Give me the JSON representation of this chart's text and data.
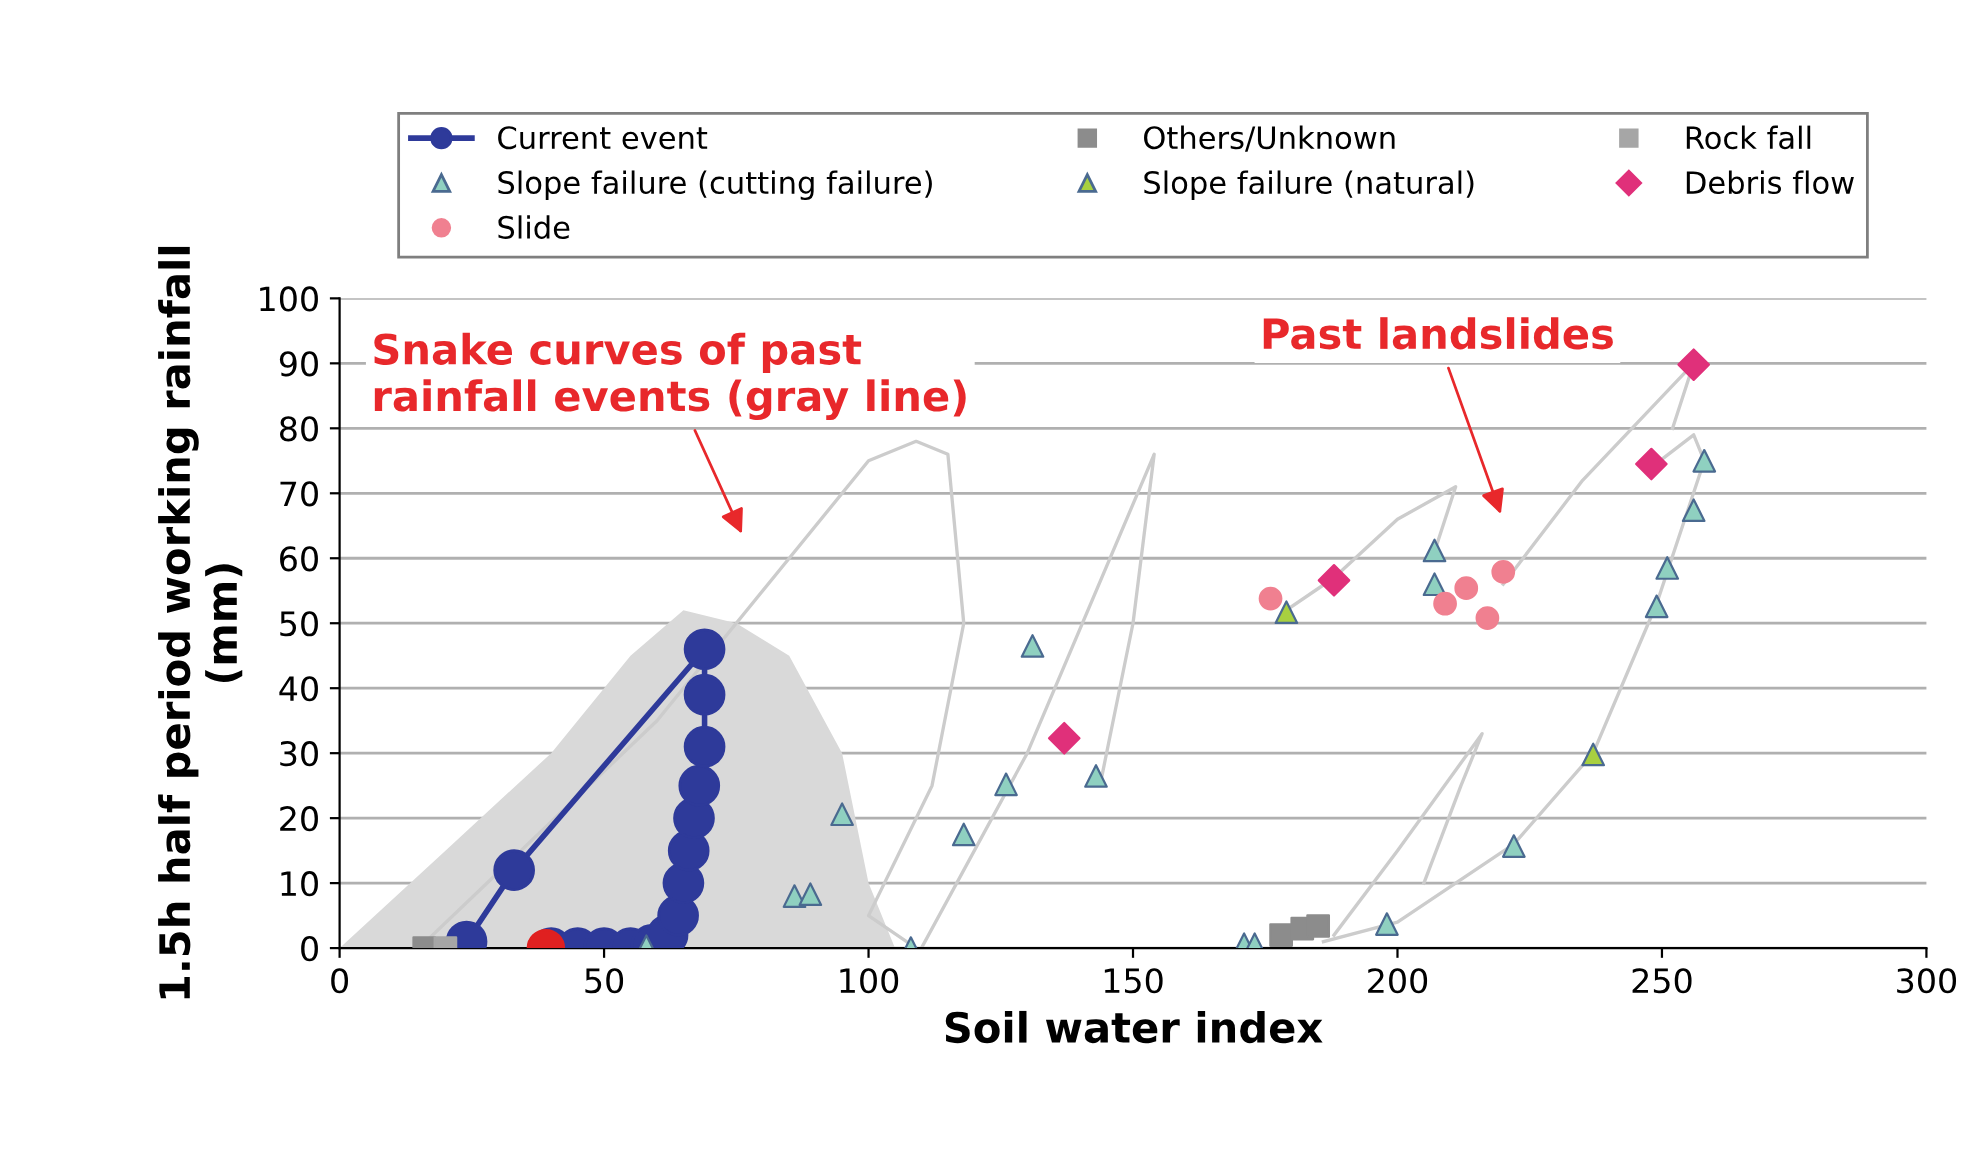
{
  "chart_data": {
    "type": "scatter",
    "xlabel": "Soil water index",
    "ylabel": "1.5h half period working rainfall\n(mm)",
    "xlim": [
      0,
      300
    ],
    "xticks": [
      0,
      50,
      100,
      150,
      200,
      250,
      300
    ],
    "ylim": [
      0,
      100
    ],
    "yticks": [
      0,
      10,
      20,
      30,
      40,
      50,
      60,
      70,
      80,
      90,
      100
    ],
    "grid": "y",
    "legend": "top",
    "series": [
      {
        "type": "line",
        "name": "Current event",
        "color": "#2e3a9a",
        "marker": "circle",
        "x": [
          40,
          45,
          50,
          55,
          59,
          62,
          64,
          65,
          66,
          67,
          68,
          69,
          69,
          69,
          33,
          24
        ],
        "values": [
          0,
          0,
          0,
          0,
          0.5,
          2,
          5,
          10,
          15,
          20,
          25,
          31,
          39,
          46,
          12,
          1
        ]
      },
      {
        "name": "Others/Unknown",
        "color": "#8c8c8c",
        "marker": "square",
        "x": [
          16,
          178,
          182,
          185
        ],
        "values": [
          0,
          2,
          3,
          3.4
        ]
      },
      {
        "name": "Rock fall",
        "color": "#a6a6a6",
        "marker": "square",
        "x": [
          20
        ],
        "values": [
          0
        ]
      },
      {
        "name": "Slope failure (cutting failure)",
        "color": "#8fd0c0",
        "marker": "triangle",
        "x": [
          58,
          86,
          89,
          95,
          108,
          118,
          126,
          131,
          143,
          171,
          173,
          198,
          207,
          207,
          222,
          249,
          251,
          256,
          258
        ],
        "values": [
          0.3,
          8,
          8.3,
          20.6,
          0,
          17.5,
          25.2,
          46.5,
          26.5,
          0.6,
          0.6,
          3.7,
          61.2,
          56,
          15.7,
          52.6,
          58.5,
          67.4,
          75
        ]
      },
      {
        "name": "Slope failure (natural)",
        "color": "#a8d040",
        "marker": "triangle",
        "x": [
          179,
          237
        ],
        "values": [
          51.7,
          29.8
        ]
      },
      {
        "name": "Debris flow",
        "color": "#e0307a",
        "marker": "diamond",
        "x": [
          137,
          188,
          248,
          256
        ],
        "values": [
          32.3,
          56.6,
          74.5,
          89.8
        ]
      },
      {
        "name": "Slide",
        "color": "#f08090",
        "marker": "circle",
        "x": [
          176,
          209,
          213,
          220,
          217
        ],
        "values": [
          53.8,
          53,
          55.4,
          57.9,
          50.8
        ]
      },
      {
        "type": "scatter",
        "color": "#e02020",
        "marker": "circle",
        "x": [
          39
        ],
        "values": [
          0
        ]
      },
      {
        "type": "area",
        "color": "#d9d9d9",
        "x": [
          0,
          20,
          40,
          55,
          65,
          75,
          85,
          95,
          100,
          105
        ],
        "values": [
          0,
          15,
          30,
          45,
          52,
          50,
          45,
          30,
          10,
          0
        ]
      },
      {
        "type": "line",
        "color": "#cccccc",
        "x": [
          15,
          60,
          85,
          100,
          109,
          115,
          118,
          112,
          100,
          109
        ],
        "values": [
          0,
          35,
          60,
          75,
          78,
          76,
          50,
          25,
          5,
          0
        ]
      },
      {
        "type": "line",
        "color": "#cccccc",
        "x": [
          110,
          130,
          154,
          150,
          144
        ],
        "values": [
          0,
          30,
          76,
          50,
          26
        ]
      },
      {
        "type": "line",
        "color": "#cccccc",
        "x": [
          188,
          200,
          216,
          212,
          205
        ],
        "values": [
          2,
          15,
          33,
          25,
          10
        ]
      },
      {
        "type": "line",
        "color": "#cccccc",
        "x": [
          186,
          200,
          222,
          237,
          249,
          258,
          256,
          248
        ],
        "values": [
          1,
          4,
          16,
          30,
          53,
          75,
          79,
          74
        ]
      },
      {
        "type": "line",
        "color": "#cccccc",
        "x": [
          179,
          188,
          200,
          211,
          207
        ],
        "values": [
          52,
          57,
          66,
          71,
          61
        ]
      },
      {
        "type": "line",
        "color": "#cccccc",
        "x": [
          220,
          235,
          256,
          252
        ],
        "values": [
          56,
          72,
          90,
          80
        ]
      }
    ],
    "annotations": [
      "Snake curves of past\nrainfall events (gray line)",
      "Past landslides"
    ]
  }
}
